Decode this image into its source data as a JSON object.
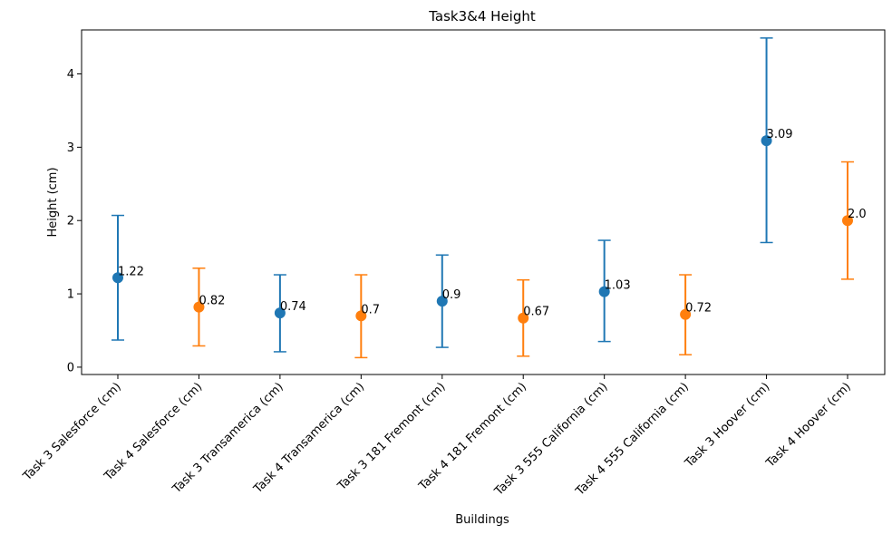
{
  "chart_data": {
    "type": "scatter",
    "title": "Task3&4 Height",
    "xlabel": "Buildings",
    "ylabel": "Height (cm)",
    "ylim": [
      -0.1,
      4.6
    ],
    "yticks": [
      0,
      1,
      2,
      3,
      4
    ],
    "grid": false,
    "colors": {
      "task3": "#1f77b4",
      "task4": "#ff7f0e"
    },
    "points": [
      {
        "label": "Task 3 Salesforce (cm)",
        "value": 1.22,
        "err_low": 0.37,
        "err_high": 2.07,
        "series": "task3",
        "value_label": "1.22"
      },
      {
        "label": "Task 4 Salesforce (cm)",
        "value": 0.82,
        "err_low": 0.29,
        "err_high": 1.35,
        "series": "task4",
        "value_label": "0.82"
      },
      {
        "label": "Task 3 Transamerica (cm)",
        "value": 0.74,
        "err_low": 0.21,
        "err_high": 1.26,
        "series": "task3",
        "value_label": "0.74"
      },
      {
        "label": "Task 4 Transamerica (cm)",
        "value": 0.7,
        "err_low": 0.13,
        "err_high": 1.26,
        "series": "task4",
        "value_label": "0.7"
      },
      {
        "label": "Task 3 181 Fremont (cm)",
        "value": 0.9,
        "err_low": 0.27,
        "err_high": 1.53,
        "series": "task3",
        "value_label": "0.9"
      },
      {
        "label": "Task 4 181 Fremont (cm)",
        "value": 0.67,
        "err_low": 0.15,
        "err_high": 1.19,
        "series": "task4",
        "value_label": "0.67"
      },
      {
        "label": "Task 3 555 California (cm)",
        "value": 1.03,
        "err_low": 0.35,
        "err_high": 1.73,
        "series": "task3",
        "value_label": "1.03"
      },
      {
        "label": "Task 4 555 California (cm)",
        "value": 0.72,
        "err_low": 0.17,
        "err_high": 1.26,
        "series": "task4",
        "value_label": "0.72"
      },
      {
        "label": "Task 3 Hoover (cm)",
        "value": 3.09,
        "err_low": 1.7,
        "err_high": 4.49,
        "series": "task3",
        "value_label": "3.09"
      },
      {
        "label": "Task 4 Hoover (cm)",
        "value": 2.0,
        "err_low": 1.2,
        "err_high": 2.8,
        "series": "task4",
        "value_label": "2.0"
      }
    ]
  }
}
